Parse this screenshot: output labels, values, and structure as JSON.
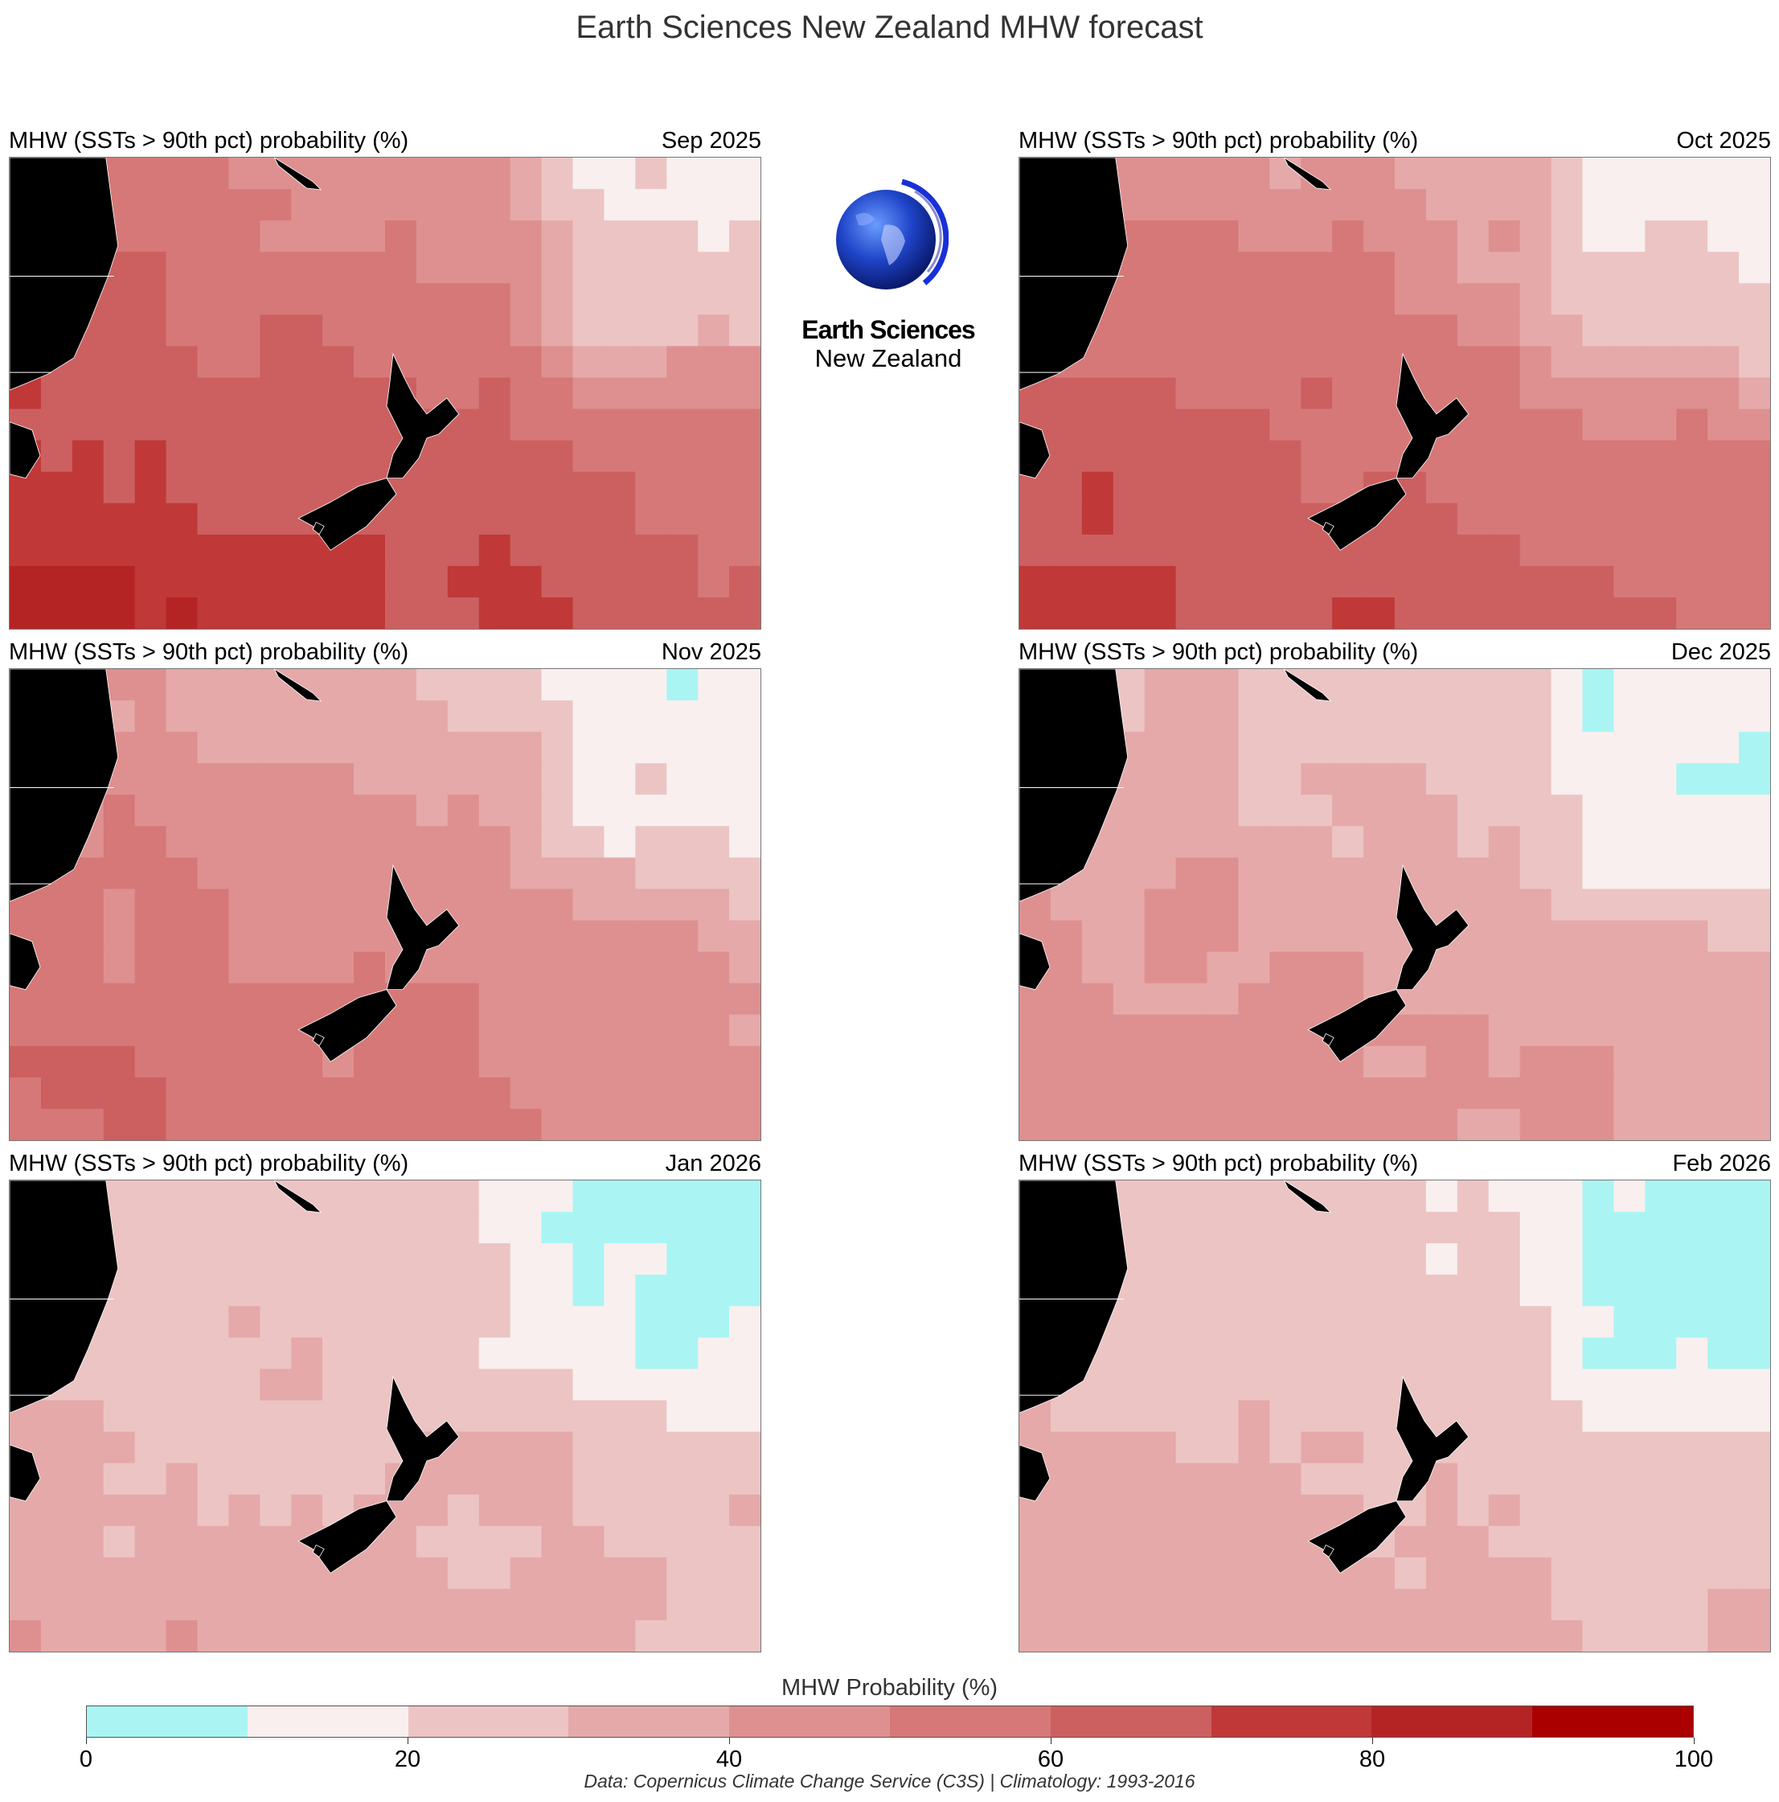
{
  "title": "Earth Sciences New Zealand MHW forecast",
  "logo": {
    "line1": "Earth Sciences",
    "line2": "New Zealand"
  },
  "panels": [
    {
      "title": "MHW (SSTs > 90th pct) probability (%)",
      "date": "Sep 2025",
      "level": 0.6
    },
    {
      "title": "MHW (SSTs > 90th pct) probability (%)",
      "date": "Oct 2025",
      "level": 0.55
    },
    {
      "title": "MHW (SSTs > 90th pct) probability (%)",
      "date": "Nov 2025",
      "level": 0.45
    },
    {
      "title": "MHW (SSTs > 90th pct) probability (%)",
      "date": "Dec 2025",
      "level": 0.35
    },
    {
      "title": "MHW (SSTs > 90th pct) probability (%)",
      "date": "Jan 2026",
      "level": 0.28
    },
    {
      "title": "MHW (SSTs > 90th pct) probability (%)",
      "date": "Feb 2026",
      "level": 0.28
    }
  ],
  "colorbar": {
    "label": "MHW Probability (%)",
    "ticks": [
      "0",
      "20",
      "40",
      "60",
      "80",
      "100"
    ],
    "colors": [
      "#aaf5f3",
      "#f9efef",
      "#ecc4c4",
      "#e5a9a9",
      "#de9090",
      "#d67878",
      "#cc6060",
      "#c03838",
      "#b52424",
      "#ab0000"
    ]
  },
  "footer": "Data: Copernicus Climate Change Service (C3S) | Climatology: 1993-2016"
}
